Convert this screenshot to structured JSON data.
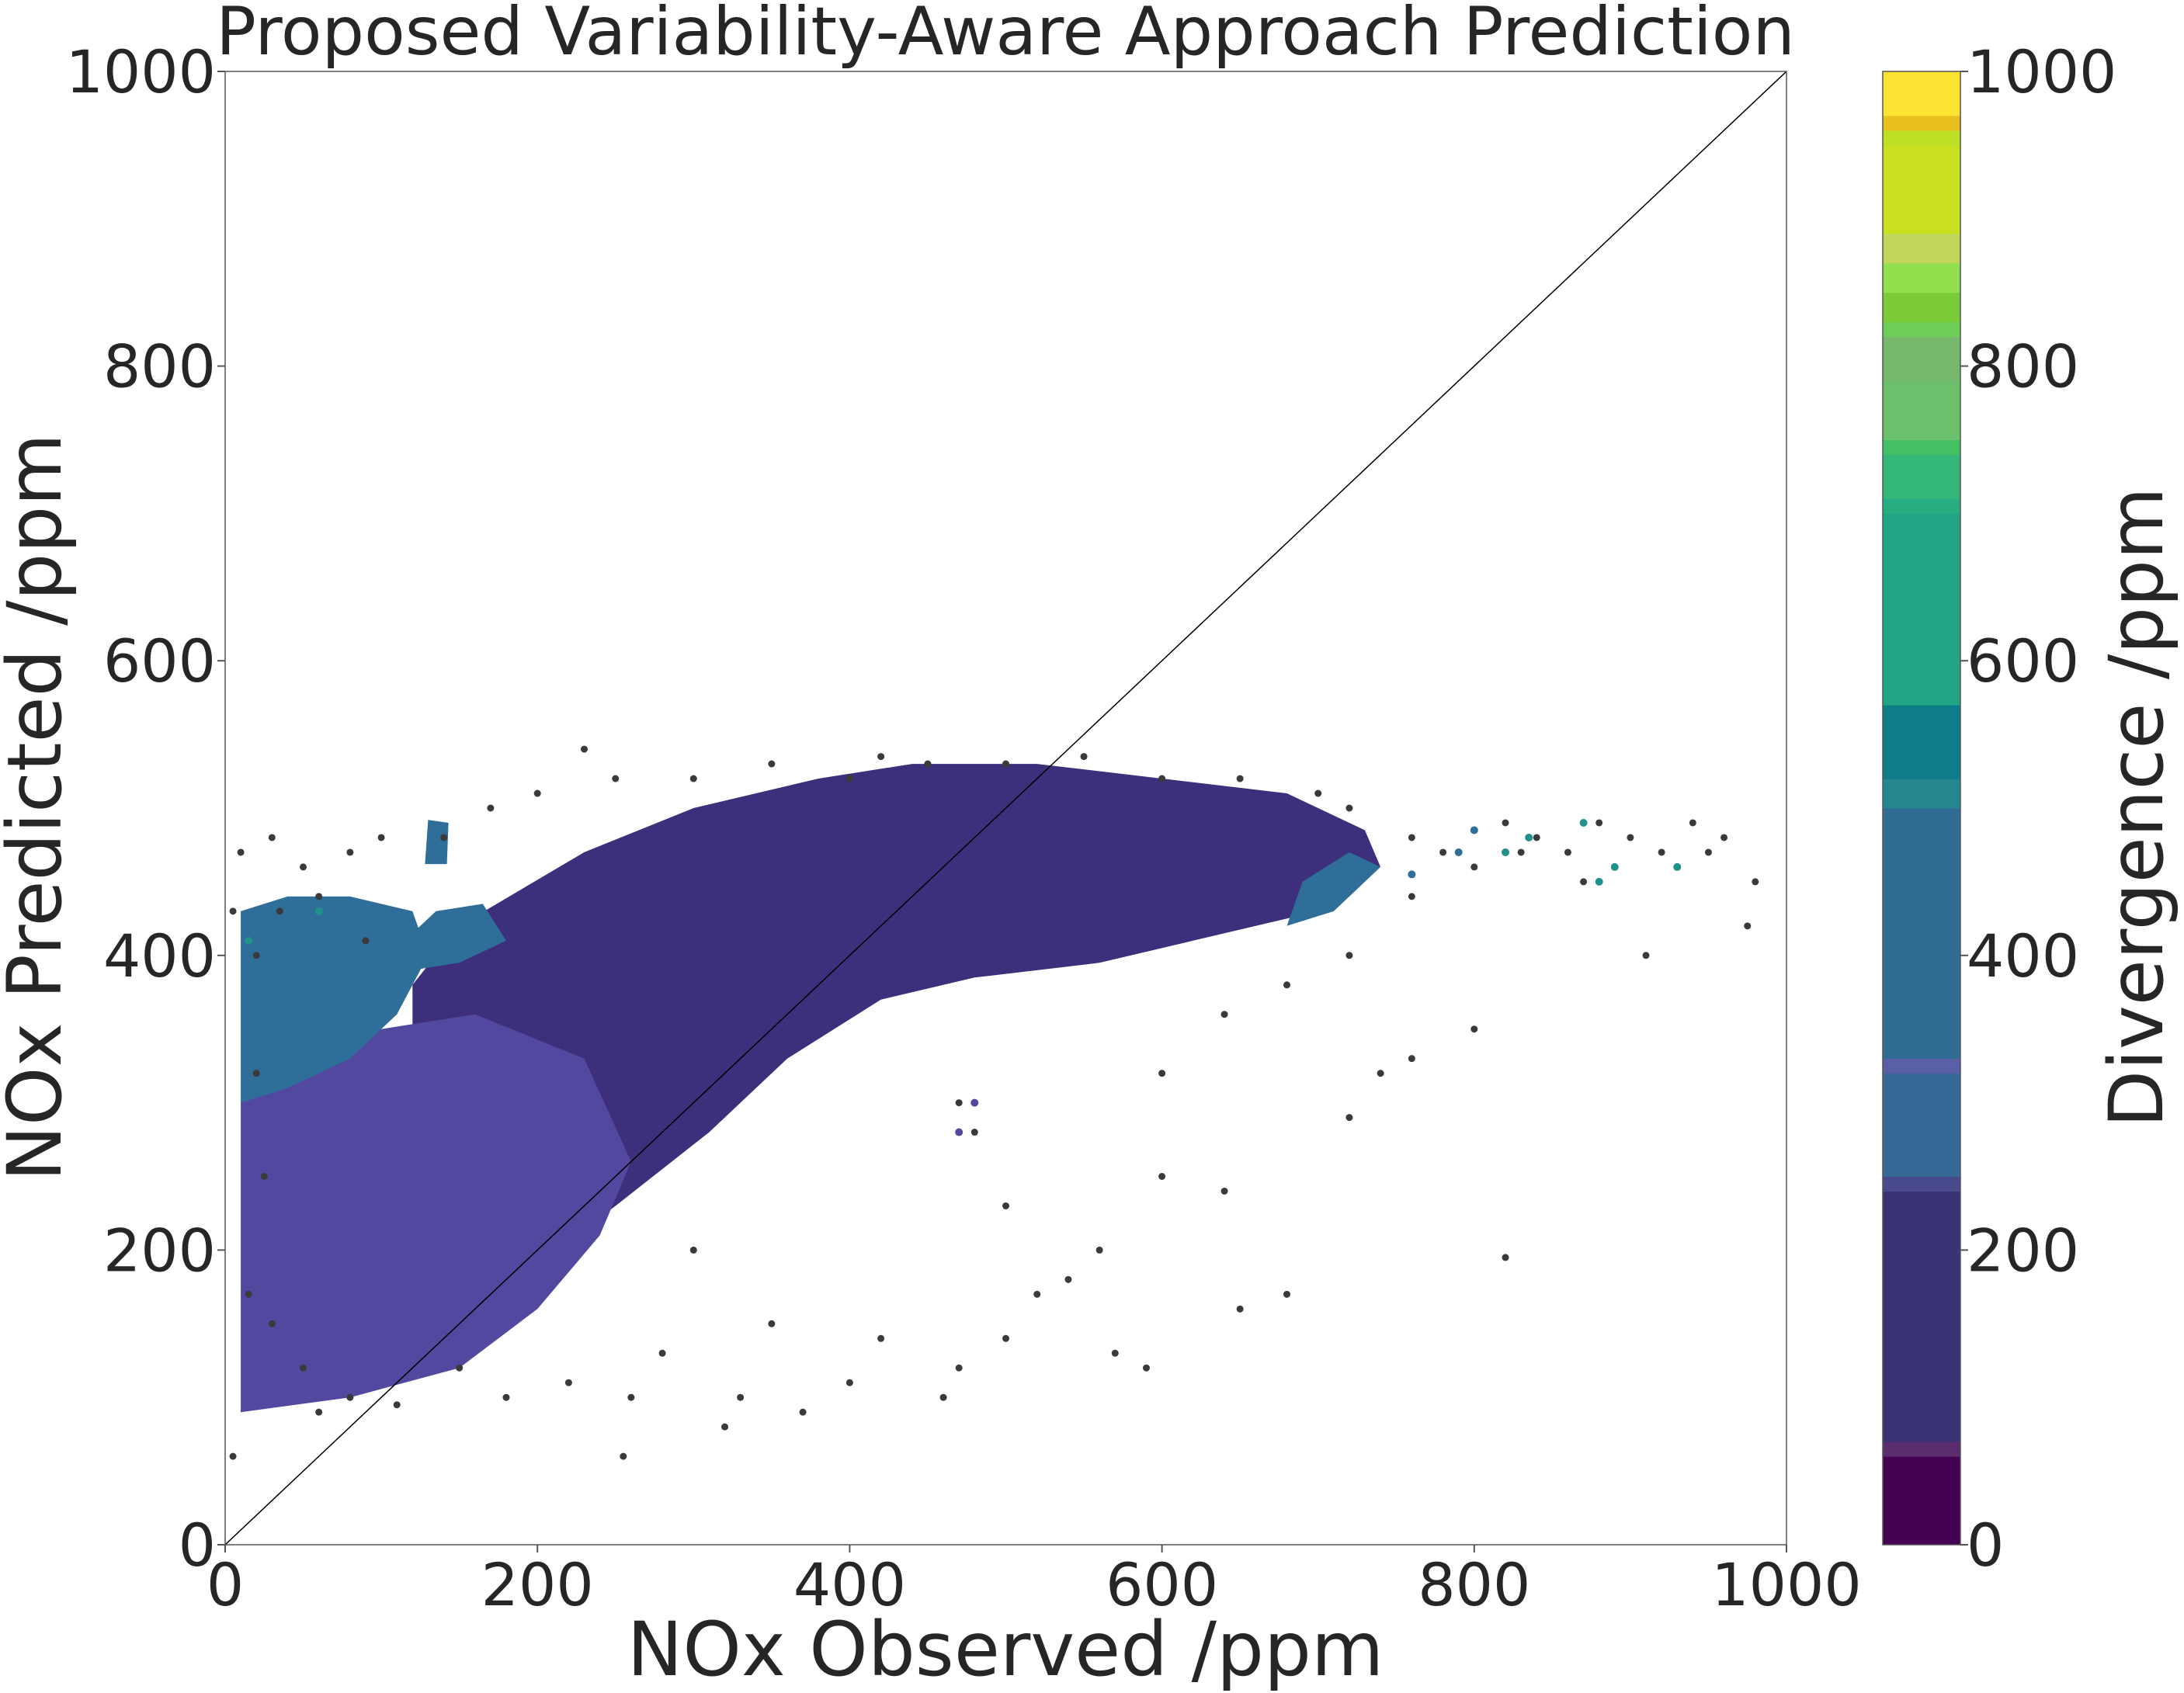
{
  "chart_data": {
    "type": "scatter",
    "title": "Proposed Variability-Aware Approach Prediction",
    "xlabel": "NOx Observed /ppm",
    "ylabel": "NOx Predicted /ppm",
    "xlim": [
      0,
      1000
    ],
    "ylim": [
      0,
      1000
    ],
    "xticks": [
      0,
      200,
      400,
      600,
      800,
      1000
    ],
    "yticks": [
      0,
      200,
      400,
      600,
      800,
      1000
    ],
    "grid": false,
    "reference_line": {
      "x": [
        0,
        1000
      ],
      "y": [
        0,
        1000
      ],
      "color": "#000000"
    },
    "colorbar": {
      "label": "Divergence /ppm",
      "range": [
        0,
        1000
      ],
      "ticks": [
        0,
        200,
        400,
        600,
        800,
        1000
      ],
      "colormap": "viridis (discrete bands)",
      "bands": [
        {
          "from": 0,
          "to": 60,
          "color": "#440154"
        },
        {
          "from": 60,
          "to": 70,
          "color": "#5c2d6e"
        },
        {
          "from": 70,
          "to": 240,
          "color": "#3b3474"
        },
        {
          "from": 240,
          "to": 250,
          "color": "#4a4a8f"
        },
        {
          "from": 250,
          "to": 320,
          "color": "#376996"
        },
        {
          "from": 320,
          "to": 330,
          "color": "#5b5fa8"
        },
        {
          "from": 330,
          "to": 500,
          "color": "#316c94"
        },
        {
          "from": 500,
          "to": 520,
          "color": "#24868e"
        },
        {
          "from": 520,
          "to": 570,
          "color": "#0f7c8a"
        },
        {
          "from": 570,
          "to": 700,
          "color": "#21a585"
        },
        {
          "from": 700,
          "to": 710,
          "color": "#27ad81"
        },
        {
          "from": 710,
          "to": 740,
          "color": "#35b779"
        },
        {
          "from": 740,
          "to": 750,
          "color": "#44c064"
        },
        {
          "from": 750,
          "to": 790,
          "color": "#6cbf6b"
        },
        {
          "from": 790,
          "to": 820,
          "color": "#76b86d"
        },
        {
          "from": 820,
          "to": 830,
          "color": "#6ece58"
        },
        {
          "from": 830,
          "to": 850,
          "color": "#7acb37"
        },
        {
          "from": 850,
          "to": 870,
          "color": "#93e04e"
        },
        {
          "from": 870,
          "to": 890,
          "color": "#c2d65c"
        },
        {
          "from": 890,
          "to": 950,
          "color": "#c8e020"
        },
        {
          "from": 950,
          "to": 960,
          "color": "#bddf26"
        },
        {
          "from": 960,
          "to": 970,
          "color": "#e9c020"
        },
        {
          "from": 970,
          "to": 1000,
          "color": "#fde332"
        }
      ]
    },
    "series_colors": {
      "outlier": "#3a3a3a",
      "low": "#5e0f63",
      "mid": "#3d2f7c",
      "mid_edge": "#5248a0",
      "high": "#2e6e99",
      "very_high": "#21918c"
    },
    "regions": [
      {
        "name": "core-band",
        "color": "low",
        "polygon": [
          [
            130,
            155
          ],
          [
            165,
            175
          ],
          [
            250,
            270
          ],
          [
            330,
            340
          ],
          [
            430,
            420
          ],
          [
            520,
            480
          ],
          [
            580,
            515
          ],
          [
            535,
            525
          ],
          [
            470,
            510
          ],
          [
            440,
            515
          ],
          [
            340,
            440
          ],
          [
            280,
            360
          ],
          [
            220,
            290
          ],
          [
            160,
            215
          ],
          [
            125,
            175
          ]
        ]
      },
      {
        "name": "main-cloud",
        "color": "mid",
        "polygon": [
          [
            120,
            380
          ],
          [
            150,
            420
          ],
          [
            230,
            470
          ],
          [
            300,
            500
          ],
          [
            380,
            520
          ],
          [
            440,
            530
          ],
          [
            520,
            530
          ],
          [
            600,
            520
          ],
          [
            680,
            510
          ],
          [
            730,
            485
          ],
          [
            740,
            460
          ],
          [
            700,
            430
          ],
          [
            620,
            410
          ],
          [
            560,
            395
          ],
          [
            480,
            385
          ],
          [
            420,
            370
          ],
          [
            360,
            330
          ],
          [
            310,
            280
          ],
          [
            250,
            230
          ],
          [
            200,
            190
          ],
          [
            170,
            220
          ],
          [
            140,
            290
          ],
          [
            120,
            340
          ]
        ]
      },
      {
        "name": "left-fringe",
        "color": "mid_edge",
        "polygon": [
          [
            10,
            90
          ],
          [
            80,
            100
          ],
          [
            150,
            120
          ],
          [
            200,
            160
          ],
          [
            240,
            210
          ],
          [
            260,
            260
          ],
          [
            230,
            330
          ],
          [
            160,
            360
          ],
          [
            100,
            350
          ],
          [
            40,
            330
          ],
          [
            10,
            300
          ]
        ]
      },
      {
        "name": "left-cluster",
        "color": "high",
        "polygon": [
          [
            10,
            300
          ],
          [
            40,
            310
          ],
          [
            80,
            330
          ],
          [
            110,
            360
          ],
          [
            130,
            400
          ],
          [
            120,
            430
          ],
          [
            80,
            440
          ],
          [
            40,
            440
          ],
          [
            10,
            430
          ]
        ]
      },
      {
        "name": "upper-left-cluster",
        "color": "high",
        "polygon": [
          [
            120,
            390
          ],
          [
            150,
            395
          ],
          [
            180,
            410
          ],
          [
            165,
            435
          ],
          [
            135,
            430
          ],
          [
            115,
            410
          ]
        ]
      },
      {
        "name": "small-blob",
        "color": "high",
        "polygon": [
          [
            128,
            462
          ],
          [
            142,
            462
          ],
          [
            143,
            490
          ],
          [
            130,
            492
          ]
        ]
      },
      {
        "name": "right-cluster",
        "color": "high",
        "polygon": [
          [
            680,
            420
          ],
          [
            710,
            430
          ],
          [
            740,
            460
          ],
          [
            720,
            470
          ],
          [
            690,
            450
          ]
        ]
      }
    ],
    "scatter_points": [
      [
        5,
        430
      ],
      [
        20,
        400
      ],
      [
        35,
        430
      ],
      [
        60,
        440
      ],
      [
        90,
        410
      ],
      [
        20,
        320
      ],
      [
        25,
        250
      ],
      [
        15,
        170
      ],
      [
        30,
        150
      ],
      [
        50,
        120
      ],
      [
        60,
        90
      ],
      [
        80,
        100
      ],
      [
        110,
        95
      ],
      [
        150,
        120
      ],
      [
        180,
        100
      ],
      [
        220,
        110
      ],
      [
        255,
        60
      ],
      [
        260,
        100
      ],
      [
        280,
        130
      ],
      [
        320,
        80
      ],
      [
        330,
        100
      ],
      [
        370,
        90
      ],
      [
        400,
        110
      ],
      [
        420,
        140
      ],
      [
        460,
        100
      ],
      [
        470,
        120
      ],
      [
        500,
        140
      ],
      [
        520,
        170
      ],
      [
        560,
        200
      ],
      [
        600,
        250
      ],
      [
        640,
        240
      ],
      [
        650,
        160
      ],
      [
        680,
        170
      ],
      [
        720,
        290
      ],
      [
        740,
        320
      ],
      [
        760,
        330
      ],
      [
        800,
        350
      ],
      [
        820,
        195
      ],
      [
        590,
        120
      ],
      [
        570,
        130
      ],
      [
        600,
        320
      ],
      [
        640,
        360
      ],
      [
        680,
        380
      ],
      [
        720,
        400
      ],
      [
        760,
        440
      ],
      [
        780,
        470
      ],
      [
        800,
        460
      ],
      [
        820,
        490
      ],
      [
        840,
        480
      ],
      [
        860,
        470
      ],
      [
        880,
        490
      ],
      [
        900,
        480
      ],
      [
        920,
        470
      ],
      [
        940,
        490
      ],
      [
        960,
        480
      ],
      [
        980,
        450
      ],
      [
        975,
        420
      ],
      [
        910,
        400
      ],
      [
        950,
        470
      ],
      [
        870,
        450
      ],
      [
        830,
        470
      ],
      [
        760,
        480
      ],
      [
        720,
        500
      ],
      [
        700,
        510
      ],
      [
        650,
        520
      ],
      [
        600,
        520
      ],
      [
        550,
        535
      ],
      [
        500,
        530
      ],
      [
        450,
        530
      ],
      [
        420,
        535
      ],
      [
        400,
        520
      ],
      [
        350,
        530
      ],
      [
        300,
        520
      ],
      [
        250,
        520
      ],
      [
        230,
        540
      ],
      [
        200,
        510
      ],
      [
        170,
        500
      ],
      [
        140,
        480
      ],
      [
        100,
        480
      ],
      [
        80,
        470
      ],
      [
        50,
        460
      ],
      [
        30,
        480
      ],
      [
        10,
        470
      ],
      [
        5,
        60
      ],
      [
        480,
        280
      ],
      [
        470,
        300
      ],
      [
        500,
        230
      ],
      [
        540,
        180
      ],
      [
        300,
        200
      ],
      [
        350,
        150
      ]
    ],
    "colored_points": [
      [
        880,
        450,
        "very_high"
      ],
      [
        890,
        460,
        "very_high"
      ],
      [
        930,
        460,
        "very_high"
      ],
      [
        870,
        490,
        "very_high"
      ],
      [
        835,
        480,
        "very_high"
      ],
      [
        820,
        470,
        "very_high"
      ],
      [
        790,
        470,
        "high"
      ],
      [
        800,
        485,
        "high"
      ],
      [
        760,
        455,
        "high"
      ],
      [
        60,
        430,
        "very_high"
      ],
      [
        15,
        410,
        "very_high"
      ],
      [
        470,
        280,
        "mid_edge"
      ],
      [
        480,
        300,
        "mid_edge"
      ]
    ]
  }
}
